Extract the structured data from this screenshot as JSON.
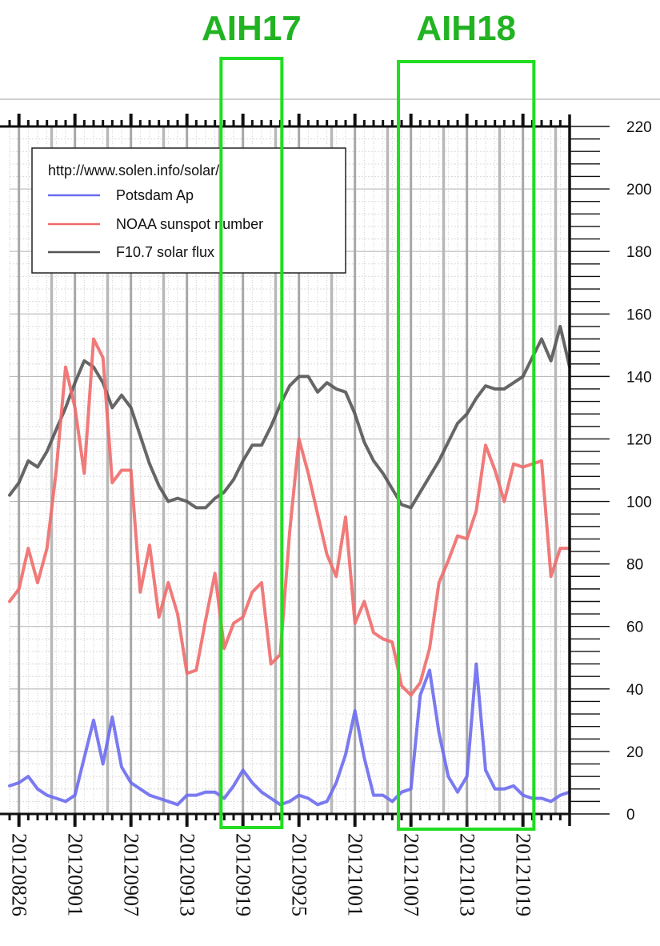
{
  "annotations": [
    {
      "label": "AIH17",
      "from": "20120917",
      "to": "20120923",
      "color": "#22dd22"
    },
    {
      "label": "AIH18",
      "from": "20121006",
      "to": "20121020",
      "color": "#22dd22"
    }
  ],
  "chart_data": {
    "type": "line",
    "title": "",
    "xlabel": "",
    "ylabel": "",
    "x_start": "20120825",
    "x_end": "20121024",
    "ylim": [
      0,
      220
    ],
    "y_ticks": [
      0,
      20,
      40,
      60,
      80,
      100,
      120,
      140,
      160,
      180,
      200,
      220
    ],
    "x_tick_labels": [
      "20120826",
      "20120901",
      "20120907",
      "20120913",
      "20120919",
      "20120925",
      "20121001",
      "20121007",
      "20121013",
      "20121019"
    ],
    "grid": true,
    "legend": {
      "placement": "top-left",
      "source": "http://www.solen.info/solar/",
      "entries": [
        {
          "name": "Potsdam Ap",
          "color": "#6b6bef"
        },
        {
          "name": "NOAA sunspot number",
          "color": "#ef6b6b"
        },
        {
          "name": "F10.7 solar flux",
          "color": "#555555"
        }
      ]
    },
    "series": [
      {
        "name": "F10.7 solar flux",
        "color": "#555555",
        "points": [
          [
            "20120825",
            102
          ],
          [
            "20120826",
            106
          ],
          [
            "20120827",
            113
          ],
          [
            "20120828",
            111
          ],
          [
            "20120829",
            116
          ],
          [
            "20120830",
            123
          ],
          [
            "20120831",
            130
          ],
          [
            "20120901",
            138
          ],
          [
            "20120902",
            145
          ],
          [
            "20120903",
            143
          ],
          [
            "20120904",
            138
          ],
          [
            "20120905",
            130
          ],
          [
            "20120906",
            134
          ],
          [
            "20120907",
            130
          ],
          [
            "20120908",
            121
          ],
          [
            "20120909",
            112
          ],
          [
            "20120910",
            105
          ],
          [
            "20120911",
            100
          ],
          [
            "20120912",
            101
          ],
          [
            "20120913",
            100
          ],
          [
            "20120914",
            98
          ],
          [
            "20120915",
            98
          ],
          [
            "20120916",
            101
          ],
          [
            "20120917",
            103
          ],
          [
            "20120918",
            107
          ],
          [
            "20120919",
            113
          ],
          [
            "20120920",
            118
          ],
          [
            "20120921",
            118
          ],
          [
            "20120922",
            124
          ],
          [
            "20120923",
            131
          ],
          [
            "20120924",
            137
          ],
          [
            "20120925",
            140
          ],
          [
            "20120926",
            140
          ],
          [
            "20120927",
            135
          ],
          [
            "20120928",
            138
          ],
          [
            "20120929",
            136
          ],
          [
            "20120930",
            135
          ],
          [
            "20121001",
            128
          ],
          [
            "20121002",
            119
          ],
          [
            "20121003",
            113
          ],
          [
            "20121004",
            109
          ],
          [
            "20121005",
            104
          ],
          [
            "20121006",
            99
          ],
          [
            "20121007",
            98
          ],
          [
            "20121008",
            103
          ],
          [
            "20121009",
            108
          ],
          [
            "20121010",
            113
          ],
          [
            "20121011",
            119
          ],
          [
            "20121012",
            125
          ],
          [
            "20121013",
            128
          ],
          [
            "20121014",
            133
          ],
          [
            "20121015",
            137
          ],
          [
            "20121016",
            136
          ],
          [
            "20121017",
            136
          ],
          [
            "20121018",
            138
          ],
          [
            "20121019",
            140
          ],
          [
            "20121020",
            146
          ],
          [
            "20121021",
            152
          ],
          [
            "20121022",
            145
          ],
          [
            "20121023",
            156
          ],
          [
            "20121024",
            143
          ]
        ]
      },
      {
        "name": "NOAA sunspot number",
        "color": "#ef6b6b",
        "points": [
          [
            "20120825",
            68
          ],
          [
            "20120826",
            72
          ],
          [
            "20120827",
            85
          ],
          [
            "20120828",
            74
          ],
          [
            "20120829",
            85
          ],
          [
            "20120830",
            110
          ],
          [
            "20120831",
            143
          ],
          [
            "20120901",
            130
          ],
          [
            "20120902",
            109
          ],
          [
            "20120903",
            152
          ],
          [
            "20120904",
            146
          ],
          [
            "20120905",
            106
          ],
          [
            "20120906",
            110
          ],
          [
            "20120907",
            110
          ],
          [
            "20120908",
            71
          ],
          [
            "20120909",
            86
          ],
          [
            "20120910",
            63
          ],
          [
            "20120911",
            74
          ],
          [
            "20120912",
            64
          ],
          [
            "20120913",
            45
          ],
          [
            "20120914",
            46
          ],
          [
            "20120915",
            62
          ],
          [
            "20120916",
            77
          ],
          [
            "20120917",
            53
          ],
          [
            "20120918",
            61
          ],
          [
            "20120919",
            63
          ],
          [
            "20120920",
            71
          ],
          [
            "20120921",
            74
          ],
          [
            "20120922",
            48
          ],
          [
            "20120923",
            51
          ],
          [
            "20120924",
            90
          ],
          [
            "20120925",
            120
          ],
          [
            "20120926",
            109
          ],
          [
            "20120927",
            96
          ],
          [
            "20120928",
            83
          ],
          [
            "20120929",
            76
          ],
          [
            "20120930",
            95
          ],
          [
            "20121001",
            61
          ],
          [
            "20121002",
            68
          ],
          [
            "20121003",
            58
          ],
          [
            "20121004",
            56
          ],
          [
            "20121005",
            55
          ],
          [
            "20121006",
            41
          ],
          [
            "20121007",
            38
          ],
          [
            "20121008",
            42
          ],
          [
            "20121009",
            53
          ],
          [
            "20121010",
            74
          ],
          [
            "20121011",
            81
          ],
          [
            "20121012",
            89
          ],
          [
            "20121013",
            88
          ],
          [
            "20121014",
            97
          ],
          [
            "20121015",
            118
          ],
          [
            "20121016",
            110
          ],
          [
            "20121017",
            100
          ],
          [
            "20121018",
            112
          ],
          [
            "20121019",
            111
          ],
          [
            "20121020",
            112
          ],
          [
            "20121021",
            113
          ],
          [
            "20121022",
            76
          ],
          [
            "20121023",
            85
          ],
          [
            "20121024",
            85
          ]
        ]
      },
      {
        "name": "Potsdam Ap",
        "color": "#6b6bef",
        "points": [
          [
            "20120825",
            9
          ],
          [
            "20120826",
            10
          ],
          [
            "20120827",
            12
          ],
          [
            "20120828",
            8
          ],
          [
            "20120829",
            6
          ],
          [
            "20120830",
            5
          ],
          [
            "20120831",
            4
          ],
          [
            "20120901",
            6
          ],
          [
            "20120902",
            18
          ],
          [
            "20120903",
            30
          ],
          [
            "20120904",
            16
          ],
          [
            "20120905",
            31
          ],
          [
            "20120906",
            15
          ],
          [
            "20120907",
            10
          ],
          [
            "20120908",
            8
          ],
          [
            "20120909",
            6
          ],
          [
            "20120910",
            5
          ],
          [
            "20120911",
            4
          ],
          [
            "20120912",
            3
          ],
          [
            "20120913",
            6
          ],
          [
            "20120914",
            6
          ],
          [
            "20120915",
            7
          ],
          [
            "20120916",
            7
          ],
          [
            "20120917",
            5
          ],
          [
            "20120918",
            9
          ],
          [
            "20120919",
            14
          ],
          [
            "20120920",
            10
          ],
          [
            "20120921",
            7
          ],
          [
            "20120922",
            5
          ],
          [
            "20120923",
            3
          ],
          [
            "20120924",
            4
          ],
          [
            "20120925",
            6
          ],
          [
            "20120926",
            5
          ],
          [
            "20120927",
            3
          ],
          [
            "20120928",
            4
          ],
          [
            "20120929",
            10
          ],
          [
            "20120930",
            19
          ],
          [
            "20121001",
            33
          ],
          [
            "20121002",
            18
          ],
          [
            "20121003",
            6
          ],
          [
            "20121004",
            6
          ],
          [
            "20121005",
            4
          ],
          [
            "20121006",
            7
          ],
          [
            "20121007",
            8
          ],
          [
            "20121008",
            38
          ],
          [
            "20121009",
            46
          ],
          [
            "20121010",
            26
          ],
          [
            "20121011",
            12
          ],
          [
            "20121012",
            7
          ],
          [
            "20121013",
            12
          ],
          [
            "20121014",
            48
          ],
          [
            "20121015",
            14
          ],
          [
            "20121016",
            8
          ],
          [
            "20121017",
            8
          ],
          [
            "20121018",
            9
          ],
          [
            "20121019",
            6
          ],
          [
            "20121020",
            5
          ],
          [
            "20121021",
            5
          ],
          [
            "20121022",
            4
          ],
          [
            "20121023",
            6
          ],
          [
            "20121024",
            7
          ]
        ]
      }
    ]
  }
}
